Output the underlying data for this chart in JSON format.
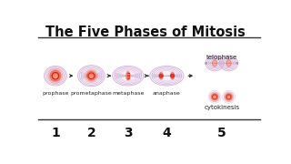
{
  "title": "The Five Phases of Mitosis",
  "title_fontsize": 10.5,
  "title_fontweight": "bold",
  "background_color": "#ffffff",
  "phases": [
    "prophase",
    "prometaphase",
    "metaphase",
    "anaphase"
  ],
  "phase5_top": "telophase",
  "phase5_bottom": "cytokinesis",
  "numbers": [
    "1",
    "2",
    "3",
    "4",
    "5"
  ],
  "cell_border": "#c8a0cc",
  "cell_fill": "#f0e4f5",
  "nucleus_red": "#d42010",
  "nucleus_orange": "#e85030",
  "nucleus_pink": "#f08070",
  "nucleus_light": "#fac0b0",
  "arrow_color": "#222222",
  "number_fontsize": 10,
  "label_fontsize": 4.5,
  "spindle_color": "#c8a8d0",
  "title_line_color": "#333333"
}
